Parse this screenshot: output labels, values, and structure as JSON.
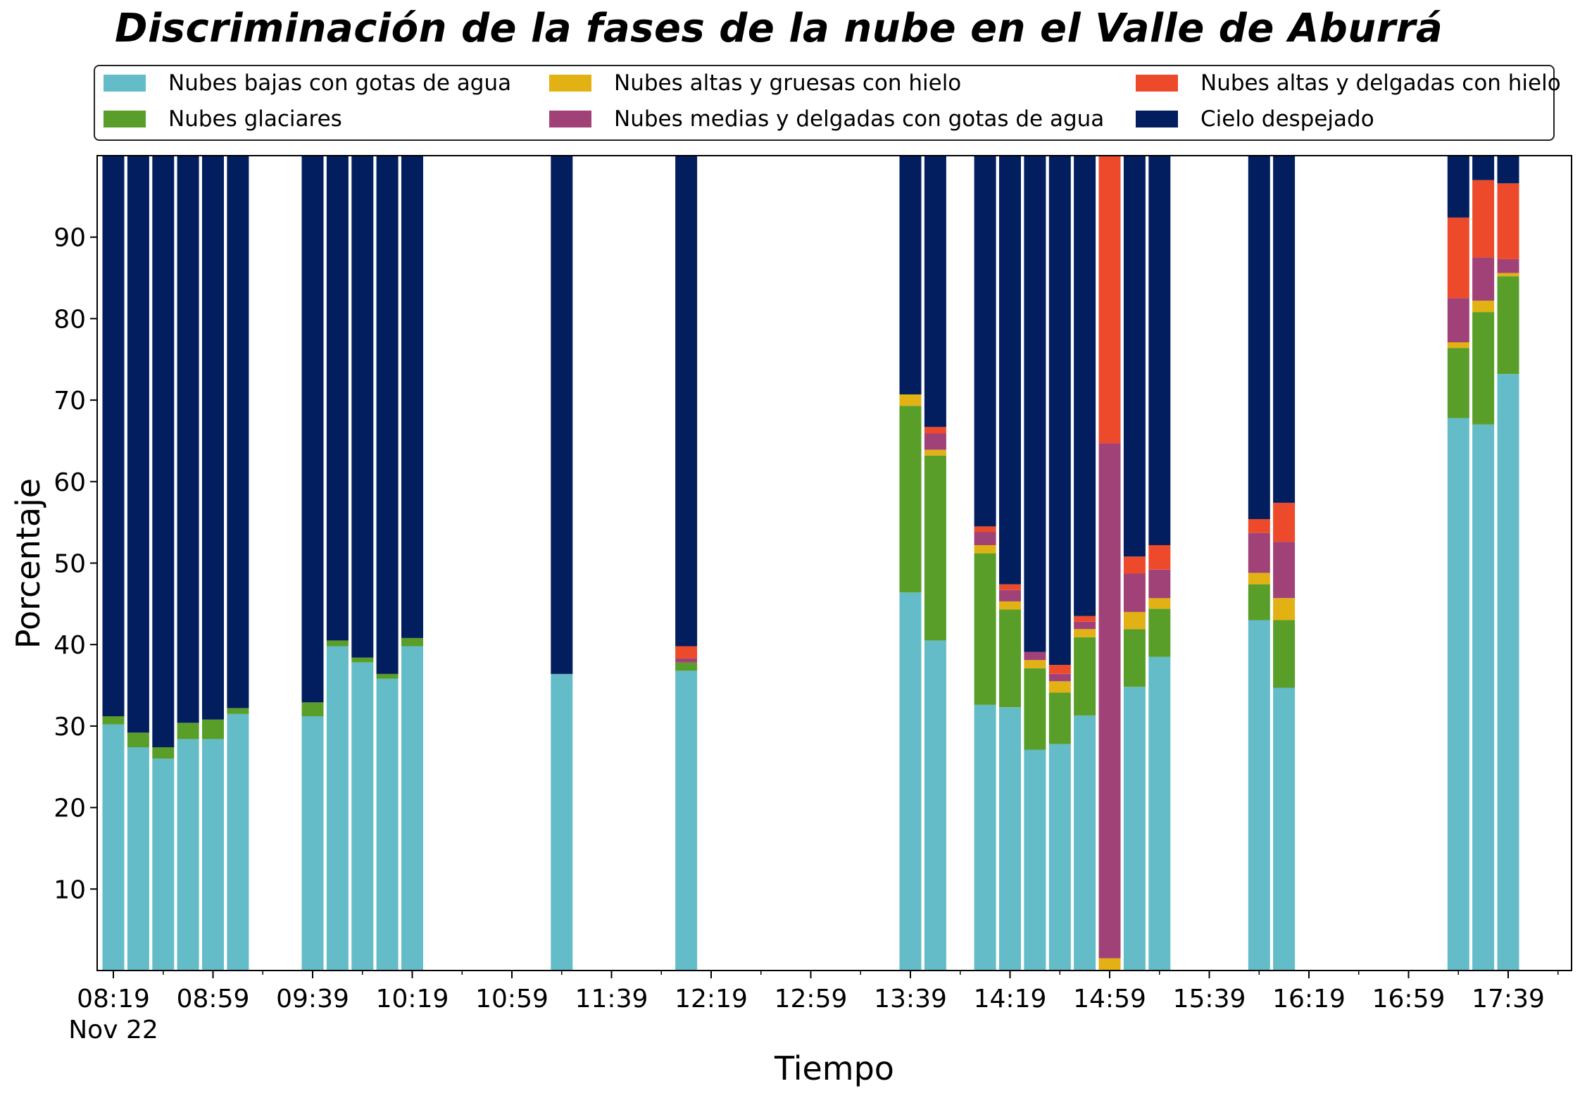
{
  "chart_data": {
    "type": "bar",
    "stacked": true,
    "title": "Discriminación de la fases de la nube en el Valle de Aburrá",
    "xlabel": "Tiempo",
    "ylabel": "Porcentaje",
    "ylim": [
      0,
      100
    ],
    "y_ticks": [
      "10",
      "20",
      "30",
      "40",
      "50",
      "60",
      "70",
      "80",
      "90"
    ],
    "x_ticks": [
      "08:19",
      "08:59",
      "09:39",
      "10:19",
      "10:59",
      "11:39",
      "12:19",
      "12:59",
      "13:39",
      "14:19",
      "14:59",
      "15:39",
      "16:19",
      "16:59",
      "17:39"
    ],
    "x_date_label": "Nov 22",
    "legend_position": "top",
    "series": [
      {
        "name": "Nubes bajas con gotas de agua",
        "color": "#64bcc8"
      },
      {
        "name": "Nubes glaciares",
        "color": "#5a9e2a"
      },
      {
        "name": "Nubes altas y gruesas con hielo",
        "color": "#e2b114"
      },
      {
        "name": "Nubes medias y delgadas con gotas de agua",
        "color": "#a04278"
      },
      {
        "name": "Nubes altas y delgadas con hielo",
        "color": "#ec4a2a"
      },
      {
        "name": "Cielo despejado",
        "color": "#021e5e"
      }
    ],
    "bars": [
      {
        "time": "08:19",
        "values": [
          30.2,
          1.0,
          0,
          0,
          0,
          68.8
        ]
      },
      {
        "time": "08:29",
        "values": [
          27.4,
          1.8,
          0,
          0,
          0,
          70.8
        ]
      },
      {
        "time": "08:39",
        "values": [
          26.0,
          1.4,
          0,
          0,
          0,
          72.6
        ]
      },
      {
        "time": "08:49",
        "values": [
          28.4,
          2.0,
          0,
          0,
          0,
          69.6
        ]
      },
      {
        "time": "08:59",
        "values": [
          28.4,
          2.4,
          0,
          0,
          0,
          69.2
        ]
      },
      {
        "time": "09:09",
        "values": [
          31.5,
          0.7,
          0,
          0,
          0,
          67.8
        ]
      },
      {
        "time": "09:39",
        "values": [
          31.2,
          1.7,
          0,
          0,
          0,
          67.1
        ]
      },
      {
        "time": "09:49",
        "values": [
          39.8,
          0.7,
          0,
          0,
          0,
          59.5
        ]
      },
      {
        "time": "09:59",
        "values": [
          37.8,
          0.6,
          0,
          0,
          0,
          61.6
        ]
      },
      {
        "time": "10:09",
        "values": [
          35.8,
          0.6,
          0,
          0,
          0,
          63.6
        ]
      },
      {
        "time": "10:19",
        "values": [
          39.8,
          1.0,
          0,
          0,
          0,
          59.2
        ]
      },
      {
        "time": "11:19",
        "values": [
          36.4,
          0,
          0,
          0,
          0,
          63.6
        ]
      },
      {
        "time": "12:09",
        "values": [
          36.8,
          1.0,
          0,
          0.5,
          1.5,
          60.2
        ]
      },
      {
        "time": "13:39",
        "values": [
          46.4,
          22.9,
          1.4,
          0,
          0,
          29.3
        ]
      },
      {
        "time": "13:49",
        "values": [
          40.5,
          22.7,
          0.7,
          2.0,
          0.8,
          33.3
        ]
      },
      {
        "time": "14:09",
        "values": [
          32.6,
          18.6,
          1.0,
          1.6,
          0.7,
          45.5
        ]
      },
      {
        "time": "14:19",
        "values": [
          32.3,
          12.0,
          1.0,
          1.4,
          0.7,
          52.6
        ]
      },
      {
        "time": "14:29",
        "values": [
          27.1,
          10.0,
          1.0,
          1.0,
          0,
          60.9
        ]
      },
      {
        "time": "14:39",
        "values": [
          27.8,
          6.3,
          1.4,
          0.9,
          1.1,
          62.5
        ]
      },
      {
        "time": "14:49",
        "values": [
          31.3,
          9.6,
          1.0,
          0.9,
          0.7,
          56.5
        ]
      },
      {
        "time": "14:59",
        "values": [
          0,
          0,
          1.5,
          63.2,
          35.3,
          0
        ]
      },
      {
        "time": "15:09",
        "values": [
          34.8,
          7.1,
          2.1,
          4.7,
          2.1,
          49.2
        ]
      },
      {
        "time": "15:19",
        "values": [
          38.5,
          5.9,
          1.3,
          3.5,
          3.0,
          47.8
        ]
      },
      {
        "time": "15:59",
        "values": [
          43.0,
          4.4,
          1.4,
          4.9,
          1.7,
          44.6
        ]
      },
      {
        "time": "16:09",
        "values": [
          34.7,
          8.3,
          2.7,
          6.9,
          4.8,
          42.6
        ]
      },
      {
        "time": "17:19",
        "values": [
          67.8,
          8.6,
          0.7,
          5.4,
          9.9,
          7.6
        ]
      },
      {
        "time": "17:29",
        "values": [
          67.0,
          13.8,
          1.4,
          5.3,
          9.5,
          3.0
        ]
      },
      {
        "time": "17:39",
        "values": [
          73.2,
          12.0,
          0.4,
          1.7,
          9.3,
          3.4
        ]
      }
    ]
  }
}
